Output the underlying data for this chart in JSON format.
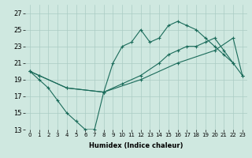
{
  "xlabel": "Humidex (Indice chaleur)",
  "background_color": "#cfe8e0",
  "grid_color": "#aaccC4",
  "line_color": "#1a6b5a",
  "xlim": [
    -0.5,
    23.5
  ],
  "ylim": [
    13,
    28
  ],
  "xticks": [
    0,
    1,
    2,
    3,
    4,
    5,
    6,
    7,
    8,
    9,
    10,
    11,
    12,
    13,
    14,
    15,
    16,
    17,
    18,
    19,
    20,
    21,
    22,
    23
  ],
  "yticks": [
    13,
    15,
    17,
    19,
    21,
    23,
    25,
    27
  ],
  "line1_x": [
    0,
    1,
    2,
    3,
    4,
    5,
    6,
    7,
    8,
    9,
    10,
    11,
    12,
    13,
    14,
    15,
    16,
    17,
    18,
    19,
    20,
    21,
    22
  ],
  "line1_y": [
    20,
    19,
    18,
    16.5,
    15,
    14,
    13,
    13,
    17.5,
    21,
    23,
    23.5,
    25,
    23.5,
    24,
    25.5,
    26,
    25.5,
    25,
    24,
    23,
    22,
    21
  ],
  "line2_x": [
    0,
    1,
    4,
    8,
    12,
    16,
    20,
    22,
    23
  ],
  "line2_y": [
    20,
    19.5,
    18,
    17.5,
    19,
    21,
    22.5,
    24,
    19.5
  ],
  "line3_x": [
    0,
    1,
    4,
    8,
    10,
    12,
    14,
    15,
    16,
    17,
    18,
    19,
    20,
    21,
    22,
    23
  ],
  "line3_y": [
    20,
    19.5,
    18,
    17.5,
    18.5,
    19.5,
    21,
    22,
    22.5,
    23,
    23,
    23.5,
    24,
    22.5,
    21,
    19.5
  ]
}
